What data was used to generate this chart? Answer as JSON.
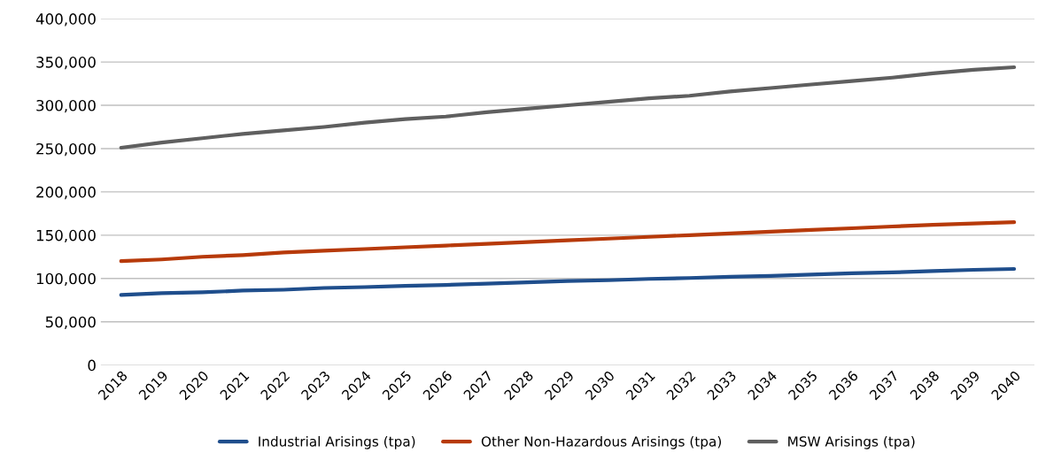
{
  "chart_data": {
    "type": "line",
    "categories": [
      "2018",
      "2019",
      "2020",
      "2021",
      "2022",
      "2023",
      "2024",
      "2025",
      "2026",
      "2027",
      "2028",
      "2029",
      "2030",
      "2031",
      "2032",
      "2033",
      "2034",
      "2035",
      "2036",
      "2037",
      "2038",
      "2039",
      "2040"
    ],
    "series": [
      {
        "name": "Industrial Arisings (tpa)",
        "color": "#1f4e8c",
        "values": [
          81000,
          83000,
          84000,
          86000,
          87000,
          89000,
          90000,
          91500,
          92500,
          94000,
          95500,
          97000,
          98000,
          99500,
          100500,
          102000,
          103000,
          104500,
          106000,
          107000,
          108500,
          110000,
          111000
        ]
      },
      {
        "name": "Other Non-Hazardous Arisings (tpa)",
        "color": "#b73a0a",
        "values": [
          120000,
          122000,
          125000,
          127000,
          130000,
          132000,
          134000,
          136000,
          138000,
          140000,
          142000,
          144000,
          146000,
          148000,
          150000,
          152000,
          154000,
          156000,
          158000,
          160000,
          162000,
          163500,
          165000
        ]
      },
      {
        "name": "MSW Arisings (tpa)",
        "color": "#5f5f5f",
        "values": [
          251000,
          257000,
          262000,
          267000,
          271000,
          275000,
          280000,
          284000,
          287000,
          292000,
          296000,
          300000,
          304000,
          308000,
          311000,
          316000,
          320000,
          324000,
          328000,
          332000,
          337000,
          341000,
          344000
        ]
      }
    ],
    "ylim": [
      0,
      400000
    ],
    "yticks": [
      {
        "value": 0,
        "label": "0"
      },
      {
        "value": 50000,
        "label": "50,000"
      },
      {
        "value": 100000,
        "label": "100,000"
      },
      {
        "value": 150000,
        "label": "150,000"
      },
      {
        "value": 200000,
        "label": "200,000"
      },
      {
        "value": 250000,
        "label": "250,000"
      },
      {
        "value": 300000,
        "label": "300,000"
      },
      {
        "value": 350000,
        "label": "350,000"
      },
      {
        "value": 400000,
        "label": "400,000"
      }
    ],
    "grid": "y",
    "legend": "bottom",
    "marker": "none",
    "line_style": "solid"
  }
}
